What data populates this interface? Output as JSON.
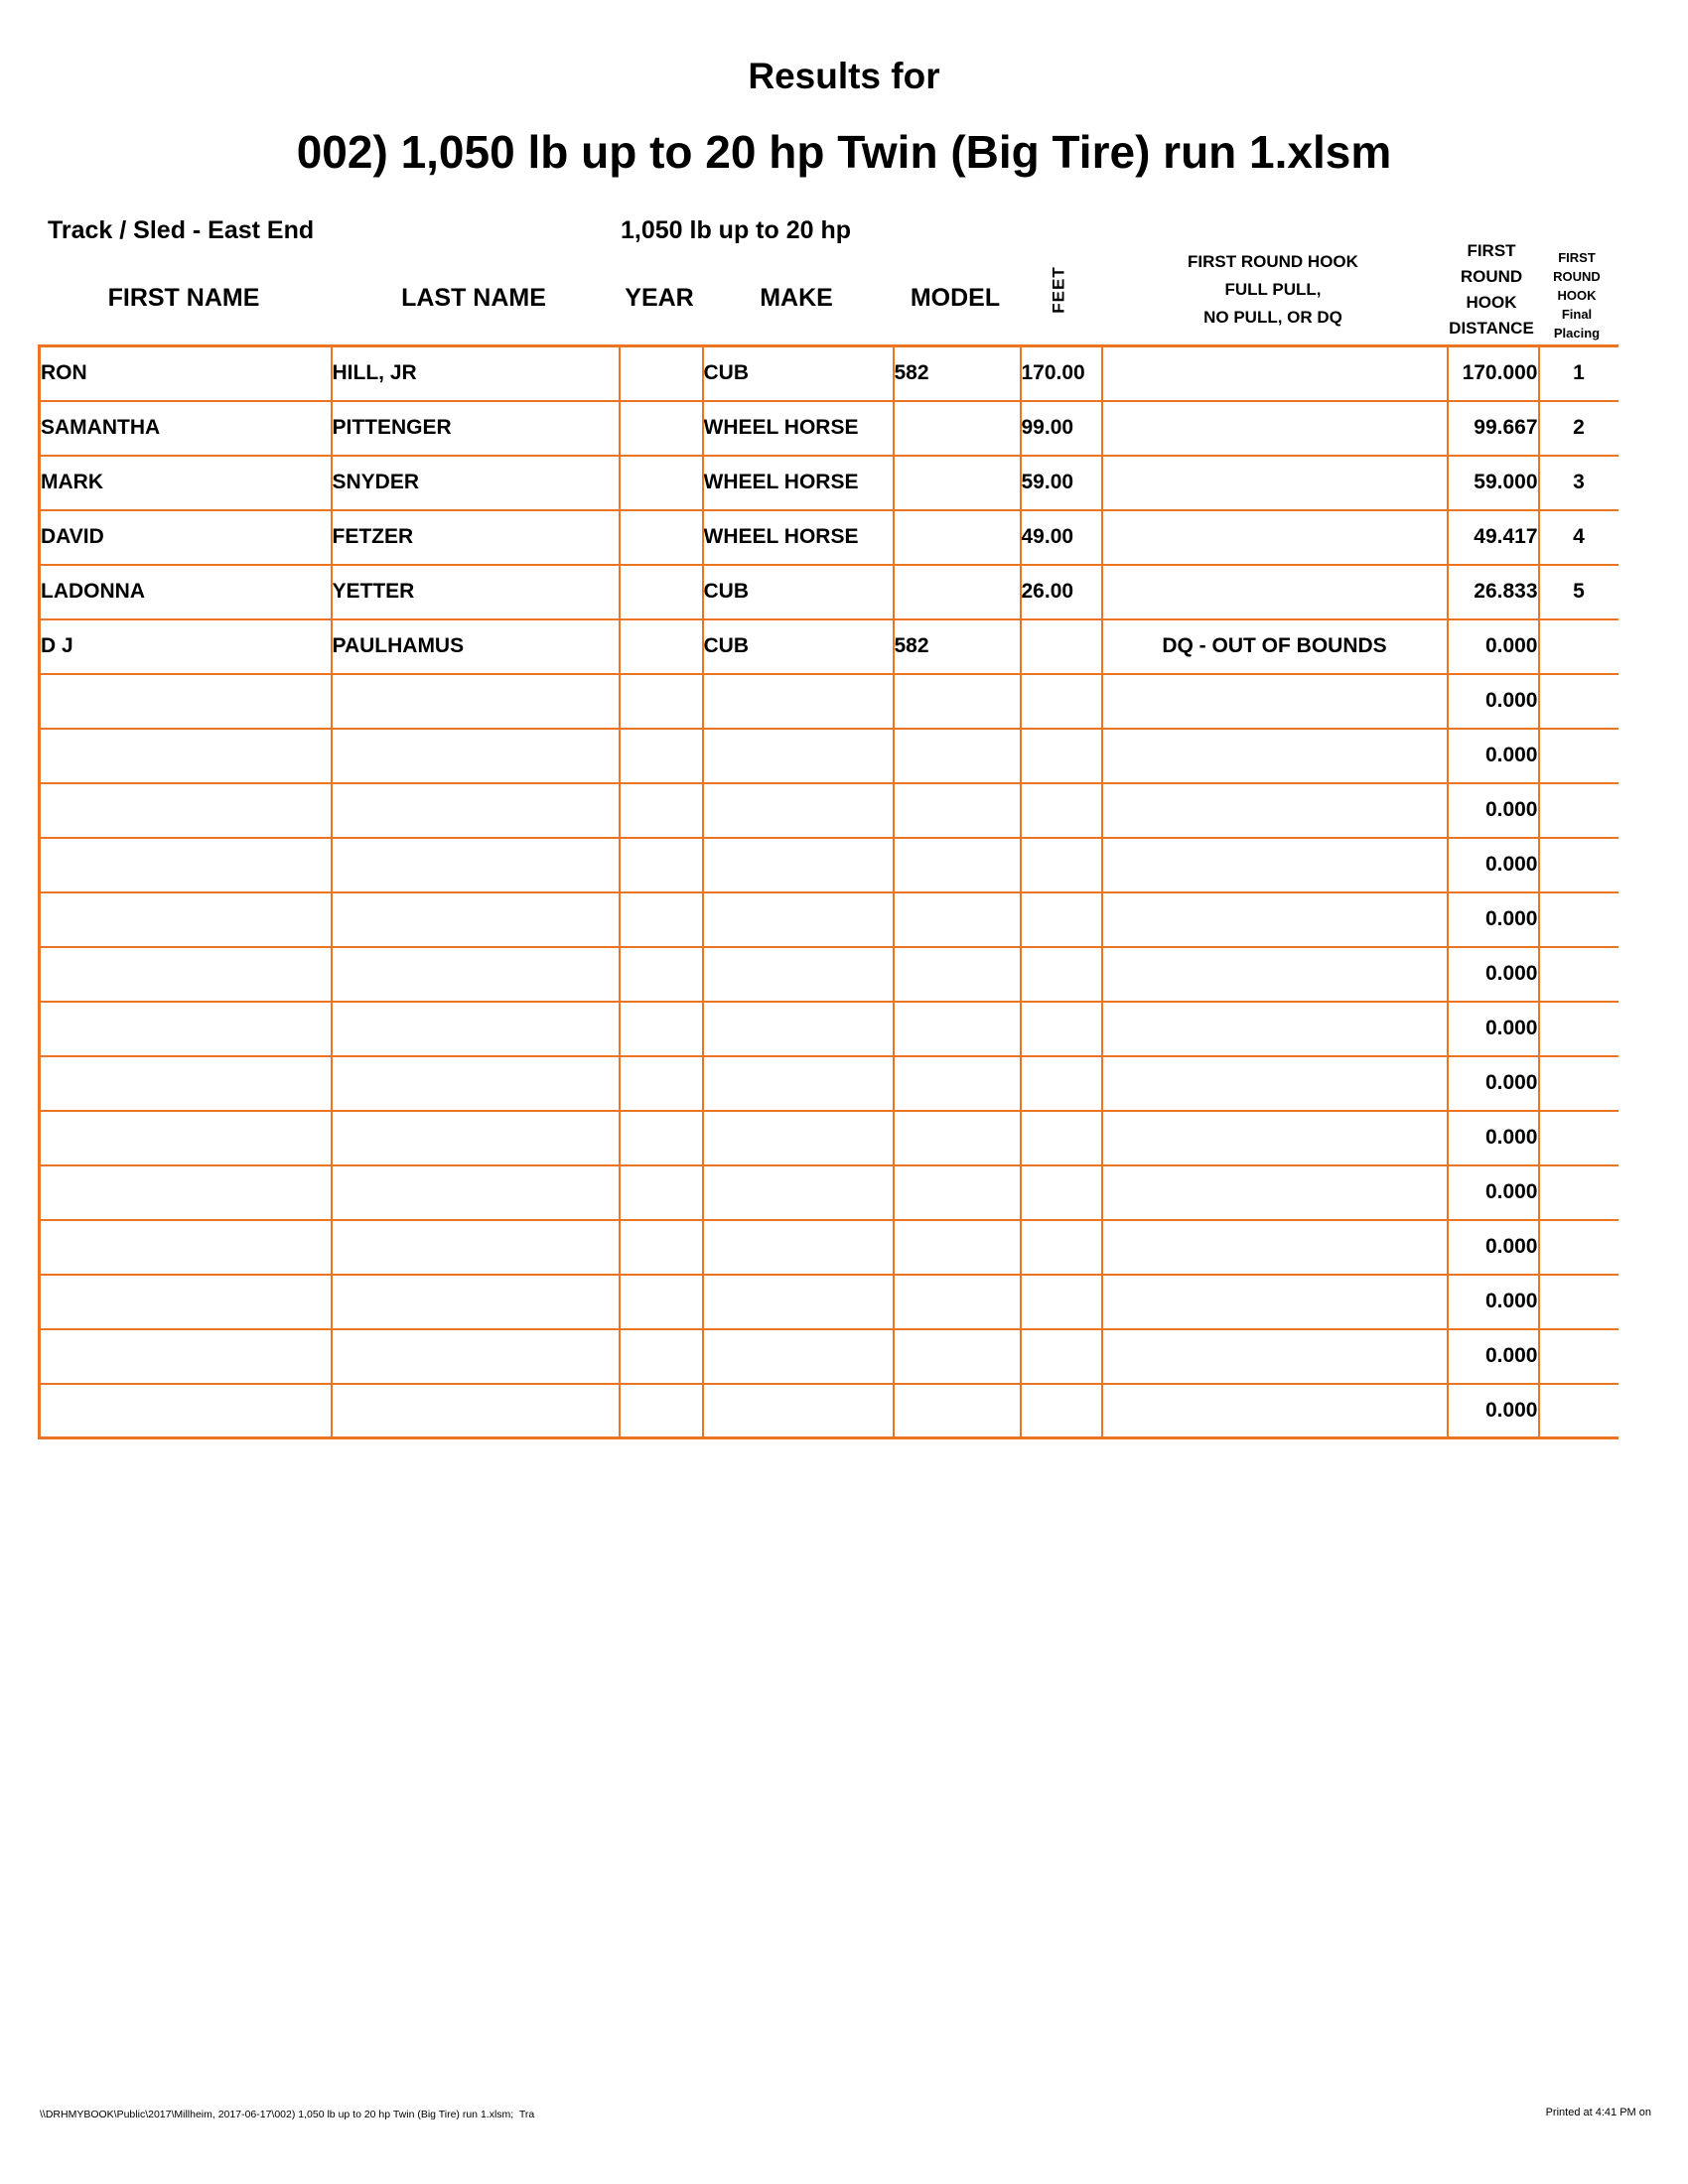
{
  "page": {
    "title_line1": "Results for",
    "title_line2": "002) 1,050 lb up to 20 hp Twin (Big Tire) run 1.xlsm",
    "track_label": "Track / Sled - East End",
    "class_label": "1,050 lb up to 20 hp",
    "footer_left": "\\\\DRHMYBOOK\\Public\\2017\\Millheim, 2017-06-17\\002) 1,050 lb up to 20 hp Twin (Big Tire) run 1.xlsm;  Tra",
    "footer_right": "Printed at 4:41 PM on"
  },
  "colors": {
    "border_orange": "#ED7420",
    "text_black": "#000000",
    "page_background": "#FFFFFF"
  },
  "table": {
    "headers": {
      "first_name": "FIRST NAME",
      "last_name": "LAST NAME",
      "year": "YEAR",
      "make": "MAKE",
      "model": "MODEL",
      "feet": "FEET",
      "hook_result_lines": [
        "FIRST ROUND HOOK",
        "FULL PULL,",
        "NO PULL, OR DQ"
      ],
      "hook_distance_lines": [
        "FIRST",
        "ROUND",
        "HOOK",
        "DISTANCE"
      ],
      "hook_placing_lines": [
        "FIRST",
        "ROUND",
        "HOOK",
        "Final",
        "Placing"
      ]
    },
    "rows": [
      {
        "first_name": "RON",
        "last_name": "HILL, JR",
        "year": "",
        "make": "CUB",
        "model": "582",
        "feet": "170.00",
        "hook_result": "",
        "hook_distance": "170.000",
        "hook_placing": "1"
      },
      {
        "first_name": "SAMANTHA",
        "last_name": "PITTENGER",
        "year": "",
        "make": "WHEEL HORSE",
        "model": "",
        "feet": "99.00",
        "hook_result": "",
        "hook_distance": "99.667",
        "hook_placing": "2"
      },
      {
        "first_name": "MARK",
        "last_name": "SNYDER",
        "year": "",
        "make": "WHEEL HORSE",
        "model": "",
        "feet": "59.00",
        "hook_result": "",
        "hook_distance": "59.000",
        "hook_placing": "3"
      },
      {
        "first_name": "DAVID",
        "last_name": "FETZER",
        "year": "",
        "make": "WHEEL HORSE",
        "model": "",
        "feet": "49.00",
        "hook_result": "",
        "hook_distance": "49.417",
        "hook_placing": "4"
      },
      {
        "first_name": "LADONNA",
        "last_name": "YETTER",
        "year": "",
        "make": "CUB",
        "model": "",
        "feet": "26.00",
        "hook_result": "",
        "hook_distance": "26.833",
        "hook_placing": "5"
      },
      {
        "first_name": "D J",
        "last_name": "PAULHAMUS",
        "year": "",
        "make": "CUB",
        "model": "582",
        "feet": "",
        "hook_result": "DQ - OUT OF BOUNDS",
        "hook_distance": "0.000",
        "hook_placing": ""
      },
      {
        "first_name": "",
        "last_name": "",
        "year": "",
        "make": "",
        "model": "",
        "feet": "",
        "hook_result": "",
        "hook_distance": "0.000",
        "hook_placing": ""
      },
      {
        "first_name": "",
        "last_name": "",
        "year": "",
        "make": "",
        "model": "",
        "feet": "",
        "hook_result": "",
        "hook_distance": "0.000",
        "hook_placing": ""
      },
      {
        "first_name": "",
        "last_name": "",
        "year": "",
        "make": "",
        "model": "",
        "feet": "",
        "hook_result": "",
        "hook_distance": "0.000",
        "hook_placing": ""
      },
      {
        "first_name": "",
        "last_name": "",
        "year": "",
        "make": "",
        "model": "",
        "feet": "",
        "hook_result": "",
        "hook_distance": "0.000",
        "hook_placing": ""
      },
      {
        "first_name": "",
        "last_name": "",
        "year": "",
        "make": "",
        "model": "",
        "feet": "",
        "hook_result": "",
        "hook_distance": "0.000",
        "hook_placing": ""
      },
      {
        "first_name": "",
        "last_name": "",
        "year": "",
        "make": "",
        "model": "",
        "feet": "",
        "hook_result": "",
        "hook_distance": "0.000",
        "hook_placing": ""
      },
      {
        "first_name": "",
        "last_name": "",
        "year": "",
        "make": "",
        "model": "",
        "feet": "",
        "hook_result": "",
        "hook_distance": "0.000",
        "hook_placing": ""
      },
      {
        "first_name": "",
        "last_name": "",
        "year": "",
        "make": "",
        "model": "",
        "feet": "",
        "hook_result": "",
        "hook_distance": "0.000",
        "hook_placing": ""
      },
      {
        "first_name": "",
        "last_name": "",
        "year": "",
        "make": "",
        "model": "",
        "feet": "",
        "hook_result": "",
        "hook_distance": "0.000",
        "hook_placing": ""
      },
      {
        "first_name": "",
        "last_name": "",
        "year": "",
        "make": "",
        "model": "",
        "feet": "",
        "hook_result": "",
        "hook_distance": "0.000",
        "hook_placing": ""
      },
      {
        "first_name": "",
        "last_name": "",
        "year": "",
        "make": "",
        "model": "",
        "feet": "",
        "hook_result": "",
        "hook_distance": "0.000",
        "hook_placing": ""
      },
      {
        "first_name": "",
        "last_name": "",
        "year": "",
        "make": "",
        "model": "",
        "feet": "",
        "hook_result": "",
        "hook_distance": "0.000",
        "hook_placing": ""
      },
      {
        "first_name": "",
        "last_name": "",
        "year": "",
        "make": "",
        "model": "",
        "feet": "",
        "hook_result": "",
        "hook_distance": "0.000",
        "hook_placing": ""
      },
      {
        "first_name": "",
        "last_name": "",
        "year": "",
        "make": "",
        "model": "",
        "feet": "",
        "hook_result": "",
        "hook_distance": "0.000",
        "hook_placing": ""
      }
    ]
  }
}
